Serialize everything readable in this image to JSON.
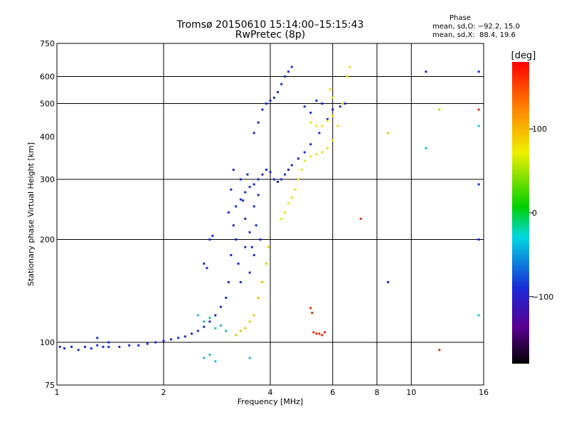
{
  "chart_data": {
    "type": "scatter",
    "title": "Tromsø 20150610 15:14:00–15:15:43",
    "subtitle": "RwPretec (8p)",
    "xlabel": "Frequency [MHz]",
    "ylabel": "Stationary phase Virtual Height [km]",
    "xscale": "log",
    "yscale": "log",
    "xlim": [
      1,
      16
    ],
    "ylim": [
      75,
      750
    ],
    "xticks": [
      1,
      2,
      4,
      6,
      8,
      10,
      16
    ],
    "yticks": [
      75,
      100,
      200,
      300,
      400,
      500,
      600,
      750
    ],
    "xgrid": [
      2,
      4,
      6,
      8,
      10
    ],
    "ygrid": [
      100,
      200,
      300,
      500,
      600
    ],
    "phase_legend": {
      "header": "Phase",
      "line_o": "mean, sd,O: −92.2, 15.0",
      "line_x": "mean, sd,X:  88.4, 19.6"
    },
    "colorbar": {
      "label": "[deg]",
      "range": [
        -180,
        180
      ],
      "ticks": [
        100,
        0,
        -100
      ],
      "tick_labels": [
        "100",
        "0",
        "−100"
      ]
    },
    "series": [
      {
        "name": "O-mode trace (blue)",
        "color": "#1a2ad8",
        "points": [
          [
            1.02,
            97
          ],
          [
            1.05,
            96
          ],
          [
            1.1,
            97
          ],
          [
            1.15,
            95
          ],
          [
            1.2,
            97
          ],
          [
            1.25,
            96
          ],
          [
            1.3,
            98
          ],
          [
            1.35,
            97
          ],
          [
            1.4,
            97
          ],
          [
            1.5,
            97
          ],
          [
            1.6,
            98
          ],
          [
            1.7,
            98
          ],
          [
            1.8,
            99
          ],
          [
            1.9,
            100
          ],
          [
            2.0,
            101
          ],
          [
            2.1,
            102
          ],
          [
            2.2,
            103
          ],
          [
            2.3,
            104
          ],
          [
            2.4,
            106
          ],
          [
            2.5,
            108
          ],
          [
            2.6,
            111
          ],
          [
            2.7,
            115
          ],
          [
            2.8,
            120
          ],
          [
            2.9,
            127
          ],
          [
            3.0,
            135
          ],
          [
            3.05,
            150
          ],
          [
            3.1,
            180
          ],
          [
            3.15,
            220
          ],
          [
            3.2,
            250
          ],
          [
            3.3,
            262
          ],
          [
            3.4,
            275
          ],
          [
            3.5,
            285
          ],
          [
            3.6,
            290
          ],
          [
            3.7,
            300
          ],
          [
            3.8,
            310
          ],
          [
            3.9,
            320
          ],
          [
            4.0,
            315
          ],
          [
            4.1,
            300
          ],
          [
            4.2,
            295
          ],
          [
            4.3,
            300
          ],
          [
            4.4,
            310
          ],
          [
            4.5,
            320
          ],
          [
            4.6,
            330
          ],
          [
            4.8,
            345
          ],
          [
            5.0,
            360
          ],
          [
            5.2,
            380
          ],
          [
            5.5,
            410
          ],
          [
            5.8,
            450
          ],
          [
            6.0,
            480
          ]
        ]
      },
      {
        "name": "O-mode spread (blue)",
        "color": "#1a2ad8",
        "points": [
          [
            3.05,
            240
          ],
          [
            3.1,
            280
          ],
          [
            3.15,
            320
          ],
          [
            3.2,
            200
          ],
          [
            3.25,
            170
          ],
          [
            3.3,
            150
          ],
          [
            3.35,
            260
          ],
          [
            3.4,
            230
          ],
          [
            3.45,
            310
          ],
          [
            3.5,
            210
          ],
          [
            3.55,
            190
          ],
          [
            3.6,
            250
          ],
          [
            3.65,
            220
          ],
          [
            3.7,
            270
          ],
          [
            3.75,
            200
          ],
          [
            3.3,
            300
          ],
          [
            3.5,
            160
          ],
          [
            3.6,
            180
          ],
          [
            3.4,
            190
          ]
        ]
      },
      {
        "name": "F2 upper trace (blue)",
        "color": "#1a2ad8",
        "points": [
          [
            3.6,
            410
          ],
          [
            3.7,
            440
          ],
          [
            3.8,
            480
          ],
          [
            3.9,
            500
          ],
          [
            4.0,
            510
          ],
          [
            4.1,
            520
          ],
          [
            4.2,
            540
          ],
          [
            4.3,
            570
          ],
          [
            4.4,
            600
          ],
          [
            4.5,
            620
          ],
          [
            4.6,
            640
          ]
        ]
      },
      {
        "name": "Sporadic blue points",
        "color": "#1a2ad8",
        "points": [
          [
            2.7,
            200
          ],
          [
            2.75,
            205
          ],
          [
            2.6,
            170
          ],
          [
            2.65,
            165
          ],
          [
            5.0,
            490
          ],
          [
            5.2,
            470
          ],
          [
            5.4,
            510
          ],
          [
            5.6,
            500
          ],
          [
            6.3,
            490
          ],
          [
            6.5,
            500
          ],
          [
            11.0,
            620
          ],
          [
            15.5,
            620
          ],
          [
            15.5,
            290
          ],
          [
            15.5,
            200
          ],
          [
            8.6,
            150
          ],
          [
            1.3,
            103
          ],
          [
            1.4,
            100
          ]
        ]
      },
      {
        "name": "X-mode trace (yellow)",
        "color": "#e8e800",
        "points": [
          [
            4.3,
            230
          ],
          [
            4.4,
            240
          ],
          [
            4.5,
            255
          ],
          [
            4.6,
            265
          ],
          [
            4.7,
            280
          ],
          [
            4.8,
            300
          ],
          [
            4.9,
            320
          ],
          [
            5.0,
            340
          ],
          [
            5.2,
            350
          ],
          [
            5.4,
            355
          ],
          [
            5.6,
            360
          ],
          [
            5.8,
            370
          ],
          [
            6.0,
            390
          ],
          [
            6.2,
            430
          ],
          [
            6.4,
            500
          ],
          [
            6.6,
            600
          ],
          [
            6.7,
            640
          ],
          [
            5.2,
            440
          ],
          [
            5.4,
            430
          ],
          [
            5.6,
            430
          ],
          [
            5.8,
            445
          ],
          [
            6.0,
            460
          ],
          [
            5.9,
            550
          ],
          [
            6.0,
            520
          ]
        ]
      },
      {
        "name": "X-mode lower (yellow)",
        "color": "#d8d000",
        "points": [
          [
            3.4,
            110
          ],
          [
            3.5,
            115
          ],
          [
            3.6,
            120
          ],
          [
            3.7,
            135
          ],
          [
            3.8,
            150
          ],
          [
            3.9,
            170
          ],
          [
            3.95,
            190
          ],
          [
            3.2,
            105
          ],
          [
            3.3,
            108
          ],
          [
            8.6,
            410
          ],
          [
            12.0,
            480
          ]
        ]
      },
      {
        "name": "Cyan/green points",
        "color": "#20c0c0",
        "points": [
          [
            2.5,
            120
          ],
          [
            2.6,
            115
          ],
          [
            2.7,
            118
          ],
          [
            2.8,
            110
          ],
          [
            2.9,
            112
          ],
          [
            3.0,
            108
          ],
          [
            2.6,
            90
          ],
          [
            2.7,
            92
          ],
          [
            2.8,
            88
          ],
          [
            3.5,
            90
          ],
          [
            11.0,
            370
          ],
          [
            15.5,
            430
          ],
          [
            15.5,
            120
          ]
        ]
      },
      {
        "name": "Red/orange points",
        "color": "#e03010",
        "points": [
          [
            5.3,
            107
          ],
          [
            5.4,
            106
          ],
          [
            5.5,
            106
          ],
          [
            5.6,
            105
          ],
          [
            5.7,
            107
          ],
          [
            5.2,
            126
          ],
          [
            5.25,
            122
          ],
          [
            7.2,
            230
          ],
          [
            12.0,
            95
          ],
          [
            15.5,
            480
          ]
        ]
      }
    ]
  }
}
